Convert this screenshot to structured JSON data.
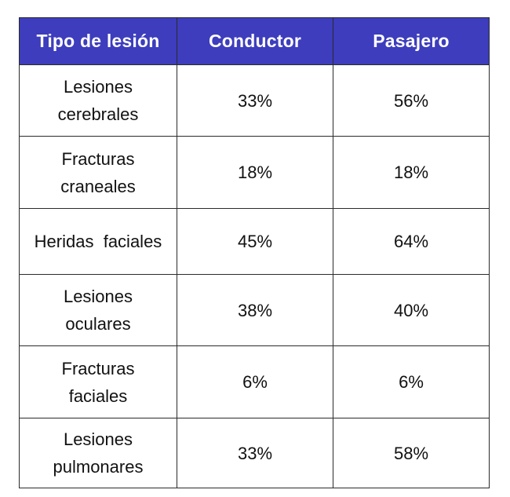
{
  "table": {
    "headers": {
      "injury_type": "Tipo de lesión",
      "driver": "Conductor",
      "passenger": "Pasajero"
    },
    "rows": [
      {
        "injury": "Lesiones\ncerebrales",
        "driver": "33%",
        "passenger": "56%"
      },
      {
        "injury": "Fracturas\ncraneales",
        "driver": "18%",
        "passenger": "18%"
      },
      {
        "injury": "Heridas  faciales",
        "driver": "45%",
        "passenger": "64%"
      },
      {
        "injury": "Lesiones\noculares",
        "driver": "38%",
        "passenger": "40%"
      },
      {
        "injury": "Fracturas\nfaciales",
        "driver": "6%",
        "passenger": "6%"
      },
      {
        "injury": "Lesiones\npulmonares",
        "driver": "33%",
        "passenger": "58%"
      }
    ]
  },
  "colors": {
    "header_background": "#3d3dbd",
    "header_text": "#ffffff",
    "border": "#2b2b2b"
  }
}
